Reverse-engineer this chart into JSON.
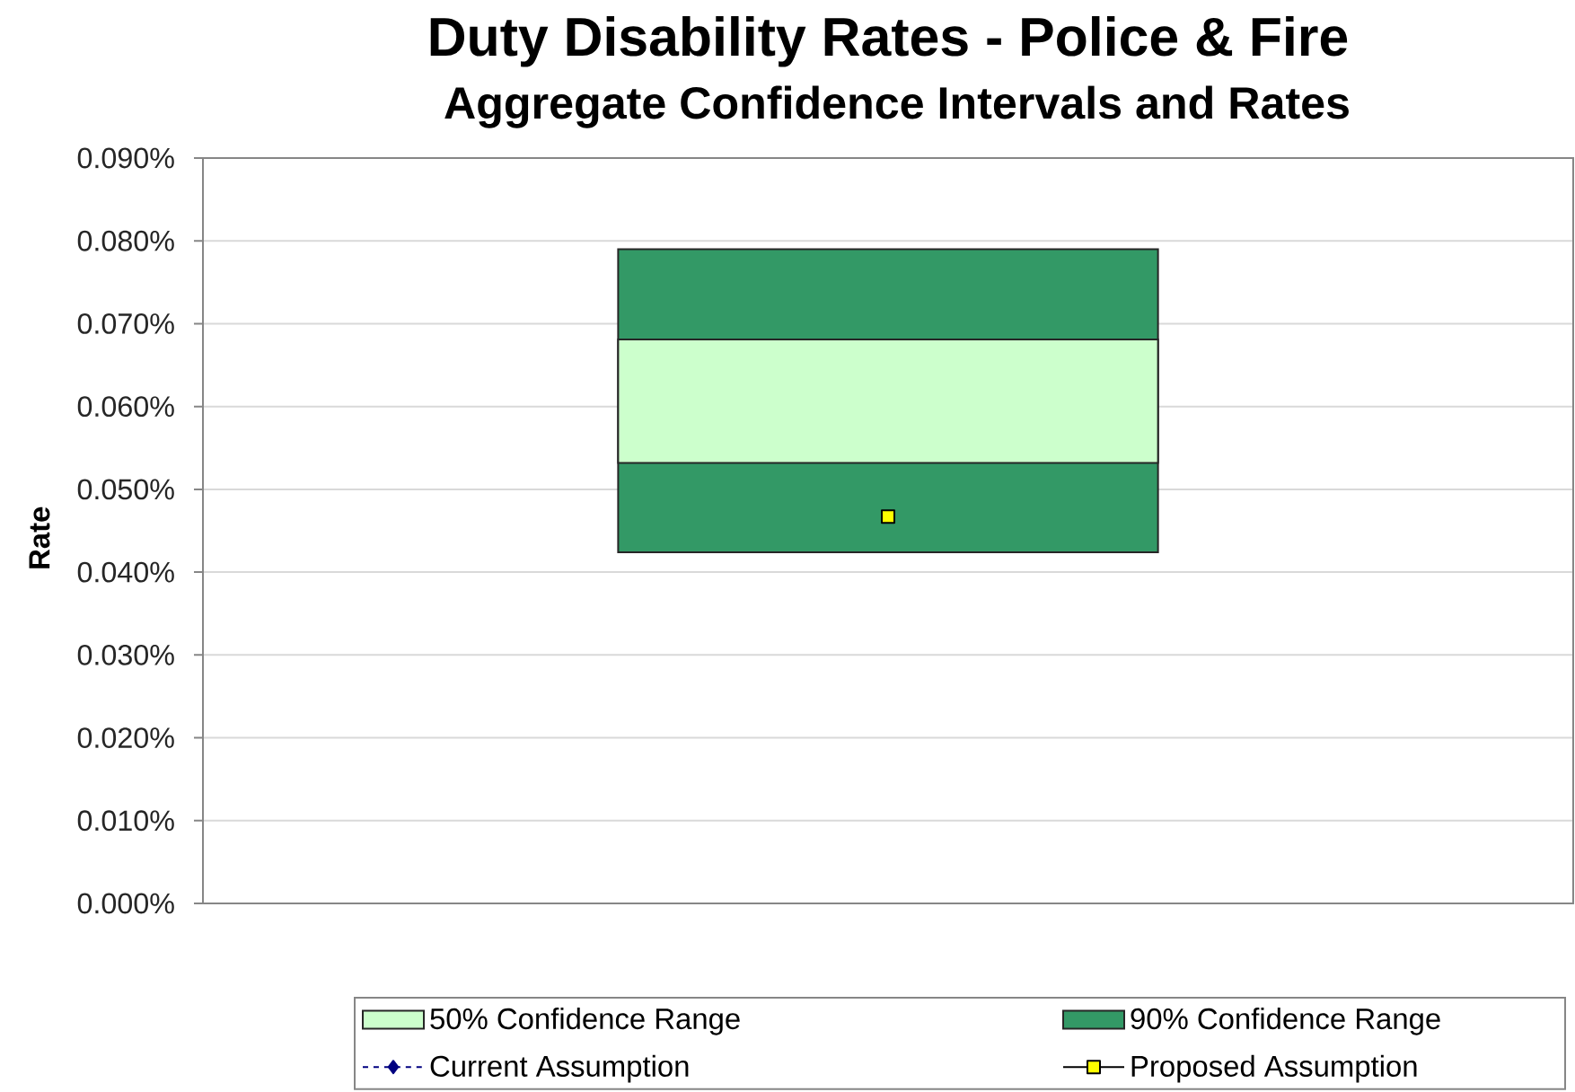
{
  "chart_data": {
    "type": "bar",
    "title": "Duty Disability Rates - Police & Fire",
    "subtitle": "Aggregate Confidence Intervals and Rates",
    "ylabel": "Rate",
    "categories": [
      null
    ],
    "series": [
      {
        "name": "50% Confidence Range",
        "color": "#ccffcc",
        "base": [
          0.0532
        ],
        "values": [
          0.0149
        ]
      },
      {
        "name": "90% Confidence Range",
        "color": "#339966",
        "base": [
          0.0424
        ],
        "values": [
          0.0366
        ]
      },
      {
        "name": "Current Assumption",
        "type": "line",
        "color": "#000080",
        "marker": "diamond",
        "line_style": "dashed",
        "values": [
          null
        ]
      },
      {
        "name": "Proposed Assumption",
        "type": "line",
        "color": "#ffff00",
        "marker": "square",
        "line_style": "solid",
        "values": [
          0.0467
        ]
      }
    ],
    "ylim": [
      0,
      0.09
    ],
    "yticks": [
      {
        "value": 0,
        "label": "0.000%"
      },
      {
        "value": 0.01,
        "label": "0.010%"
      },
      {
        "value": 0.02,
        "label": "0.020%"
      },
      {
        "value": 0.03,
        "label": "0.030%"
      },
      {
        "value": 0.04,
        "label": "0.040%"
      },
      {
        "value": 0.05,
        "label": "0.050%"
      },
      {
        "value": 0.06,
        "label": "0.060%"
      },
      {
        "value": 0.07,
        "label": "0.070%"
      },
      {
        "value": 0.08,
        "label": "0.080%"
      },
      {
        "value": 0.09,
        "label": "0.090%"
      }
    ],
    "grid": "y",
    "legend": "bottom"
  }
}
